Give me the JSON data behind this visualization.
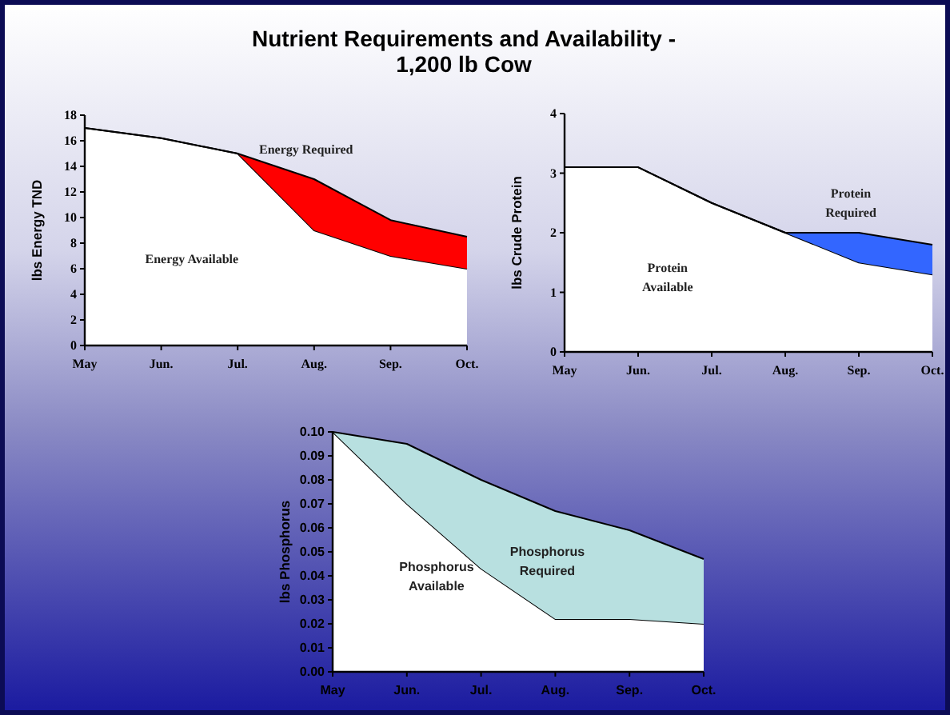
{
  "chart_data": [
    {
      "type": "area",
      "title": "Nutrient Requirements and Availability - 1,200 lb Cow",
      "ylabel": "lbs Energy TND",
      "categories": [
        "May",
        "Jun.",
        "Jul.",
        "Aug.",
        "Sep.",
        "Oct."
      ],
      "stacked": true,
      "ylim": [
        0,
        18
      ],
      "yticks": [
        0,
        2,
        4,
        6,
        8,
        10,
        12,
        14,
        16,
        18
      ],
      "grid": false,
      "series": [
        {
          "name": "Energy Available",
          "color": "#ffffff",
          "values": [
            17,
            16.2,
            15,
            9,
            7,
            6
          ]
        },
        {
          "name": "Energy Required",
          "color": "#ff0000",
          "values": [
            0,
            0,
            0,
            4,
            2.8,
            2.5
          ]
        }
      ]
    },
    {
      "type": "area",
      "ylabel": "lbs Crude Protein",
      "categories": [
        "May",
        "Jun.",
        "Jul.",
        "Aug.",
        "Sep.",
        "Oct."
      ],
      "stacked": true,
      "ylim": [
        0,
        4
      ],
      "yticks": [
        0,
        1,
        2,
        3,
        4
      ],
      "grid": false,
      "series": [
        {
          "name": "Protein Available",
          "color": "#ffffff",
          "values": [
            3.1,
            3.1,
            2.5,
            2,
            1.5,
            1.3
          ]
        },
        {
          "name": "Protein Required",
          "color": "#3366ff",
          "values": [
            0,
            0,
            0,
            0,
            0.5,
            0.5
          ]
        }
      ]
    },
    {
      "type": "area",
      "ylabel": "lbs Phosphorus",
      "categories": [
        "May",
        "Jun.",
        "Jul.",
        "Aug.",
        "Sep.",
        "Oct."
      ],
      "stacked": true,
      "ylim": [
        0,
        0.1
      ],
      "yticks": [
        {
          "value": 0,
          "label": "0.00"
        },
        {
          "value": 0.01,
          "label": "0.01"
        },
        {
          "value": 0.02,
          "label": "0.02"
        },
        {
          "value": 0.03,
          "label": "0.03"
        },
        {
          "value": 0.04,
          "label": "0.04"
        },
        {
          "value": 0.05,
          "label": "0.05"
        },
        {
          "value": 0.06,
          "label": "0.06"
        },
        {
          "value": 0.07,
          "label": "0.07"
        },
        {
          "value": 0.08,
          "label": "0.08"
        },
        {
          "value": 0.09,
          "label": "0.09"
        },
        {
          "value": 0.1,
          "label": "0.10"
        }
      ],
      "grid": false,
      "series": [
        {
          "name": "Phosphorus Available",
          "color": "#ffffff",
          "values": [
            0.1,
            0.07,
            0.043,
            0.022,
            0.022,
            0.02
          ]
        },
        {
          "name": "Phosphorus Required",
          "color": "#b8e0e0",
          "values": [
            0,
            0.025,
            0.037,
            0.045,
            0.037,
            0.027
          ]
        }
      ]
    }
  ]
}
